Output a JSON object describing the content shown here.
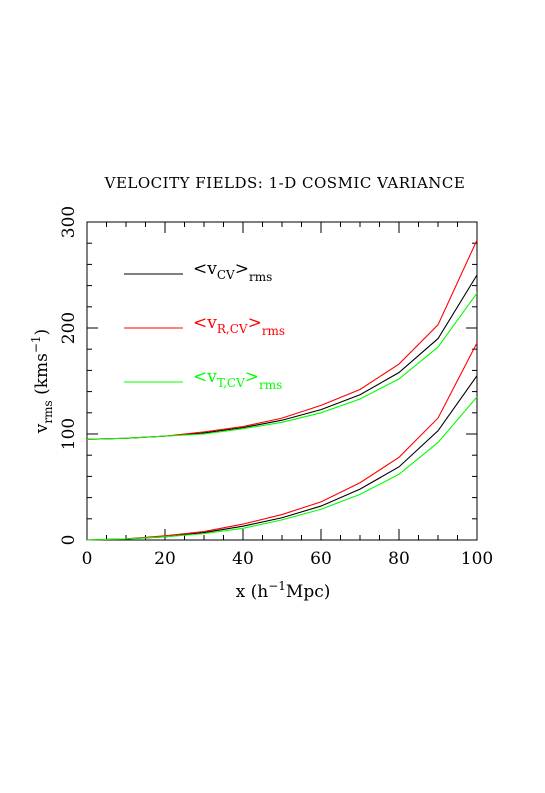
{
  "chart_data": {
    "type": "line",
    "title": "VELOCITY FIELDS: 1-D COSMIC VARIANCE",
    "xlabel": {
      "base": "x (h",
      "sup": "−1",
      "rest": "Mpc)"
    },
    "ylabel": {
      "base": "v",
      "sub": "rms",
      "rest": " (kms",
      "sup": "−1",
      "end": ")"
    },
    "xlim": [
      0,
      100
    ],
    "ylim": [
      0,
      300
    ],
    "xticks": [
      "0",
      "20",
      "40",
      "60",
      "80",
      "100"
    ],
    "yticks": [
      "0",
      "100",
      "200",
      "300"
    ],
    "grid": false,
    "legend_position": "top-left",
    "x": [
      0,
      10,
      20,
      30,
      40,
      50,
      60,
      70,
      80,
      90,
      100
    ],
    "series": [
      {
        "name": "<vCV>rms",
        "legend": {
          "open": "<v",
          "sub1": "CV",
          "close": ">",
          "sub2": "rms"
        },
        "color": "#000000",
        "upper": [
          95,
          96,
          98,
          101,
          106,
          113,
          123,
          137,
          158,
          190,
          250
        ],
        "lower": [
          0,
          1,
          3,
          7,
          13,
          21,
          32,
          48,
          69,
          103,
          155
        ]
      },
      {
        "name": "<vR,CV>rms",
        "legend": {
          "open": "<v",
          "sub1": "R,CV",
          "close": ">",
          "sub2": "rms"
        },
        "color": "#ff0000",
        "upper": [
          95,
          96,
          98,
          102,
          107,
          115,
          127,
          142,
          166,
          203,
          283
        ],
        "lower": [
          0,
          1,
          4,
          8,
          15,
          24,
          36,
          54,
          78,
          115,
          186
        ]
      },
      {
        "name": "<vT,CV>rms",
        "legend": {
          "open": "<v",
          "sub1": "T,CV",
          "close": ">",
          "sub2": "rms"
        },
        "color": "#00ff00",
        "upper": [
          95,
          96,
          98,
          100,
          105,
          111,
          120,
          133,
          152,
          182,
          233
        ],
        "lower": [
          0,
          1,
          3,
          6,
          11,
          19,
          29,
          43,
          62,
          92,
          135
        ]
      }
    ]
  }
}
